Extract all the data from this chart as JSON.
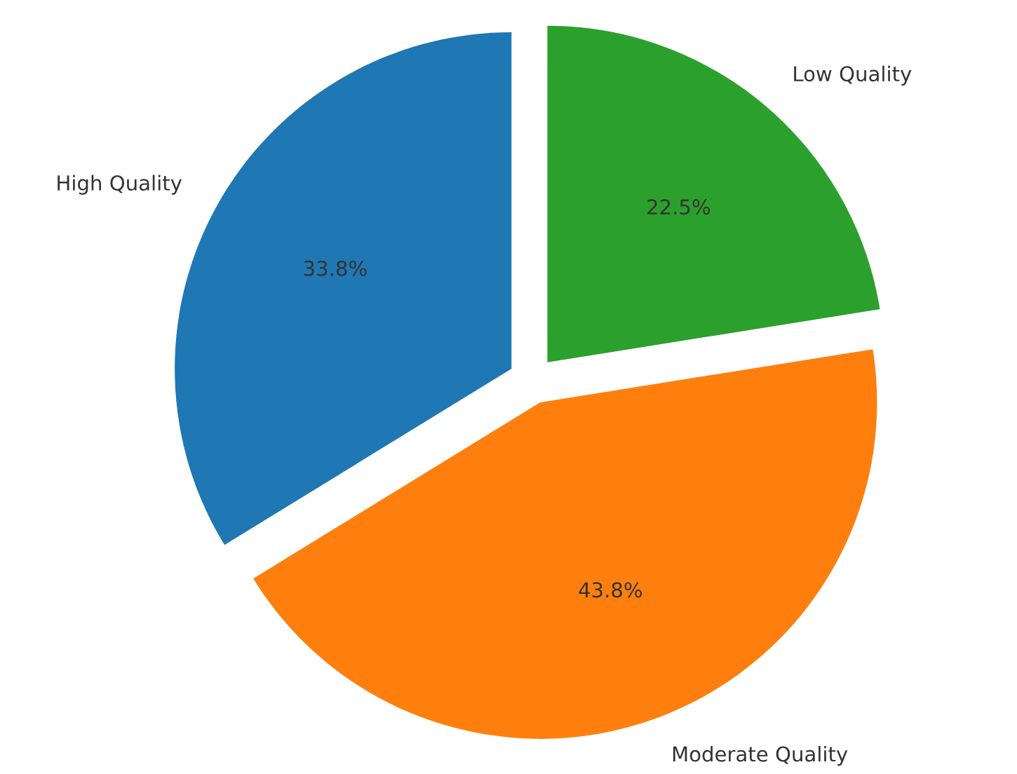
{
  "chart_data": {
    "type": "pie",
    "categories": [
      "High Quality",
      "Moderate Quality",
      "Low Quality"
    ],
    "values": [
      33.8,
      43.8,
      22.5
    ],
    "colors": [
      "#1f77b4",
      "#ff7f0e",
      "#2ca02c"
    ],
    "value_labels": [
      "33.8%",
      "43.8%",
      "22.5%"
    ]
  }
}
